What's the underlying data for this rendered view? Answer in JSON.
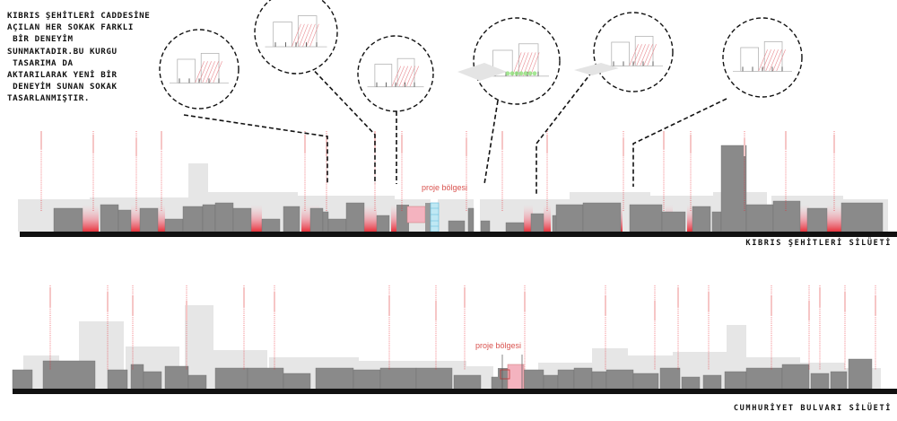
{
  "intro_text": "KIBRIS ŞEHİTLERİ CADDESİNE\nAÇILAN HER SOKAK FARKLI\n BİR DENEYİM\nSUNMAKTADIR.BU KURGU\n TASARIMA DA\nAKTARILARAK YENİ BİR\n DENEYİM SUNAN SOKAK\nTASARLANMIŞTIR.",
  "silhouettes": {
    "top": {
      "title": "KIBRIS ŞEHİTLERİ SİLÜETİ",
      "project_label": "proje bölgesi"
    },
    "bottom": {
      "title": "CUMHURİYET BULVARI SİLÜETİ",
      "project_label": "proje bölgesi"
    }
  },
  "colors": {
    "building_dark": "#8a8a8a",
    "building_light": "#e6e6e6",
    "ground": "#111111",
    "accent_red": "#e8202a",
    "accent_pink": "#f4a8b4",
    "glass_blue": "#8fd0e8",
    "planting_green": "#8fe07a"
  }
}
